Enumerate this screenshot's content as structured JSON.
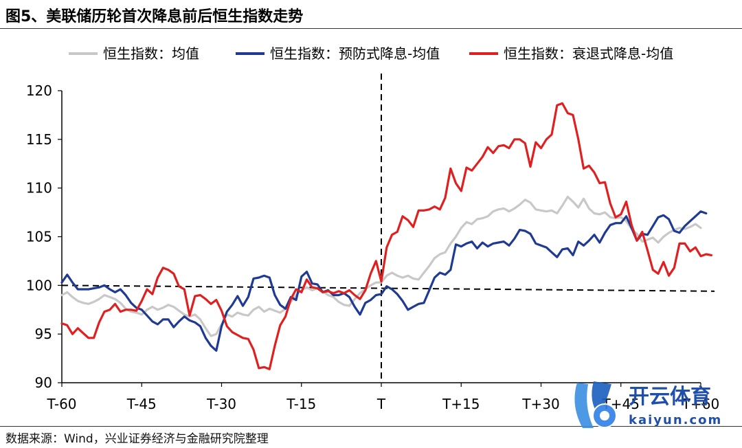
{
  "title": "图5、美联储历轮首次降息前后恒生指数走势",
  "source": "数据来源：Wind，兴业证券经济与金融研究院整理",
  "watermark": {
    "brand": "开云体育",
    "domain": "kaiyun.com"
  },
  "chart_data": {
    "type": "line",
    "title": "",
    "xlabel": "",
    "ylabel": "",
    "ylim": [
      90,
      120
    ],
    "yticks": [
      90,
      95,
      100,
      105,
      110,
      115,
      120
    ],
    "xlim": [
      -60,
      60
    ],
    "xticks": [
      {
        "x": -60,
        "label": "T-60"
      },
      {
        "x": -45,
        "label": "T-45"
      },
      {
        "x": -30,
        "label": "T-30"
      },
      {
        "x": -15,
        "label": "T-15"
      },
      {
        "x": 0,
        "label": "T"
      },
      {
        "x": 15,
        "label": "T+15"
      },
      {
        "x": 30,
        "label": "T+30"
      },
      {
        "x": 45,
        "label": "T+45"
      },
      {
        "x": 60,
        "label": "T+60"
      }
    ],
    "legend_position": "top",
    "colors": {
      "gray": "#c8c8c8",
      "blue": "#1f3a93",
      "red": "#e02020"
    },
    "reference_lines": {
      "vertical_x": 0,
      "trend_y_start": 100.0,
      "trend_y_end": 99.4
    },
    "series": [
      {
        "name": "恒生指数：均值",
        "color": "#c8c8c8",
        "x_start": -60,
        "values": [
          99.0,
          99.3,
          98.8,
          98.4,
          98.2,
          98.1,
          98.3,
          98.6,
          99.0,
          98.8,
          98.6,
          98.2,
          97.6,
          97.3,
          97.2,
          97.0,
          97.5,
          97.8,
          97.5,
          97.7,
          98.0,
          97.8,
          97.4,
          97.0,
          96.8,
          97.0,
          96.5,
          95.6,
          94.8,
          95.0,
          96.0,
          97.0,
          96.8,
          97.2,
          97.0,
          96.9,
          97.5,
          97.8,
          97.3,
          97.6,
          97.4,
          97.2,
          97.6,
          98.3,
          99.0,
          99.5,
          99.8,
          99.5,
          99.7,
          99.4,
          99.0,
          98.8,
          98.3,
          98.0,
          97.9,
          98.6,
          99.2,
          99.6,
          100.0,
          100.3,
          100.3,
          101.0,
          101.3,
          101.0,
          100.8,
          101.0,
          100.7,
          100.6,
          101.3,
          102.0,
          102.8,
          103.2,
          103.4,
          104.3,
          105.0,
          105.9,
          106.5,
          106.3,
          106.8,
          106.9,
          107.1,
          107.6,
          107.8,
          107.9,
          107.6,
          107.9,
          108.3,
          108.8,
          108.5,
          107.8,
          107.7,
          107.6,
          107.7,
          107.4,
          108.2,
          109.1,
          108.6,
          108.0,
          108.9,
          107.9,
          107.4,
          107.3,
          107.5,
          107.0,
          106.9,
          107.0,
          106.6,
          105.8,
          105.3,
          104.5,
          104.7,
          104.9,
          104.4,
          105.0,
          105.4,
          105.7,
          105.9,
          105.8,
          106.0,
          106.3,
          105.9
        ]
      },
      {
        "name": "恒生指数：预防式降息-均值",
        "color": "#1f3a93",
        "x_start": -60,
        "values": [
          100.3,
          101.1,
          100.3,
          99.6,
          99.6,
          99.6,
          99.7,
          99.8,
          100.0,
          99.6,
          99.3,
          99.6,
          99.0,
          98.2,
          97.7,
          97.5,
          96.9,
          96.3,
          96.0,
          96.5,
          96.5,
          95.7,
          96.3,
          96.8,
          96.4,
          96.2,
          95.8,
          94.6,
          93.8,
          93.3,
          95.8,
          97.3,
          98.0,
          98.9,
          97.9,
          98.8,
          100.7,
          100.8,
          101.0,
          100.8,
          99.0,
          98.0,
          97.6,
          98.8,
          98.5,
          100.9,
          101.4,
          100.2,
          100.1,
          99.3,
          99.5,
          99.0,
          99.0,
          99.2,
          98.8,
          97.8,
          97.0,
          98.2,
          98.5,
          99.0,
          99.1,
          99.9,
          99.6,
          99.1,
          98.4,
          97.5,
          97.8,
          98.1,
          98.2,
          99.5,
          100.8,
          101.3,
          101.1,
          101.6,
          104.2,
          104.0,
          104.3,
          104.5,
          103.8,
          104.4,
          104.0,
          104.3,
          104.4,
          104.5,
          104.1,
          104.8,
          105.7,
          105.6,
          105.3,
          104.3,
          104.1,
          103.9,
          103.4,
          102.9,
          103.7,
          103.8,
          103.1,
          104.5,
          104.1,
          104.6,
          105.2,
          104.4,
          105.4,
          106.2,
          106.4,
          106.4,
          107.1,
          105.9,
          104.6,
          105.3,
          105.2,
          106.1,
          107.0,
          107.2,
          106.8,
          105.6,
          105.4,
          106.1,
          106.6,
          107.1,
          107.6,
          107.4
        ]
      },
      {
        "name": "恒生指数：衰退式降息-均值",
        "color": "#e02020",
        "x_start": -60,
        "values": [
          96.1,
          95.9,
          95.0,
          95.6,
          95.1,
          94.6,
          94.6,
          96.2,
          97.3,
          97.5,
          98.1,
          97.3,
          97.5,
          97.5,
          97.4,
          98.4,
          99.6,
          99.1,
          100.8,
          101.8,
          101.6,
          101.2,
          99.9,
          99.6,
          96.9,
          98.9,
          99.0,
          98.6,
          98.1,
          98.5,
          97.4,
          95.8,
          95.2,
          94.9,
          94.6,
          94.5,
          93.4,
          91.5,
          91.6,
          91.4,
          93.8,
          95.9,
          96.8,
          98.6,
          99.6,
          99.3,
          100.6,
          99.8,
          99.7,
          99.3,
          99.4,
          99.2,
          99.4,
          99.2,
          99.5,
          99.0,
          98.6,
          99.5,
          101.2,
          102.5,
          100.4,
          103.9,
          105.2,
          105.5,
          107.1,
          106.7,
          106.0,
          107.7,
          107.7,
          107.8,
          108.1,
          107.8,
          109.0,
          112.0,
          110.5,
          109.7,
          112.1,
          111.8,
          112.5,
          113.2,
          114.2,
          113.6,
          114.3,
          114.4,
          114.1,
          115.0,
          115.0,
          114.6,
          112.2,
          114.7,
          114.1,
          115.0,
          115.5,
          118.5,
          118.7,
          117.7,
          117.5,
          115.0,
          112.0,
          112.3,
          111.6,
          110.5,
          110.6,
          108.4,
          107.0,
          107.3,
          108.6,
          106.2,
          104.6,
          105.5,
          103.6,
          101.6,
          101.2,
          102.4,
          101.0,
          101.8,
          104.3,
          104.3,
          103.5,
          103.9,
          103.0,
          103.2,
          103.1
        ]
      }
    ]
  }
}
